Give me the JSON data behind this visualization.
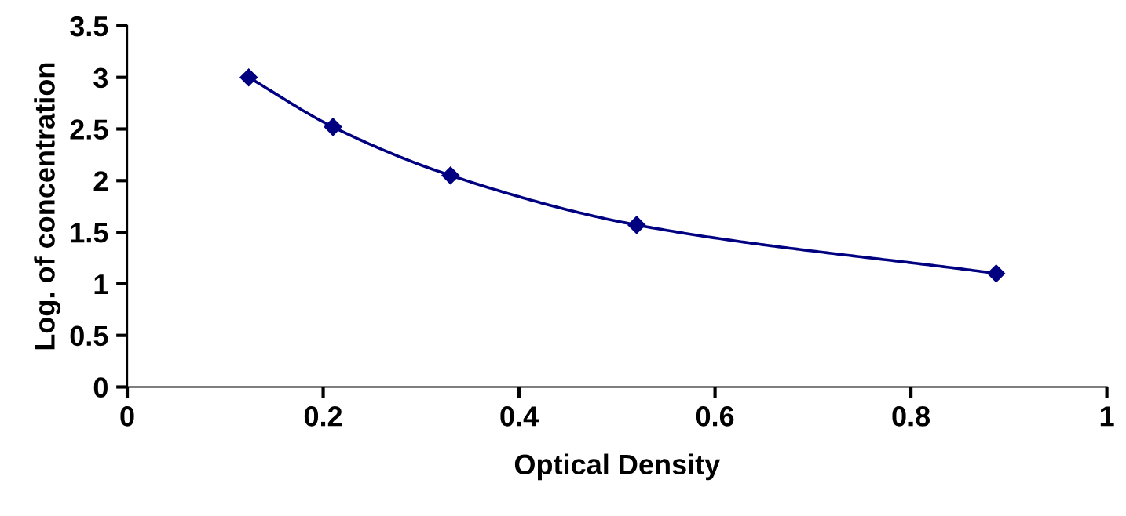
{
  "chart_data": {
    "type": "line",
    "xlabel": "Optical Density",
    "ylabel": "Log. of concentration",
    "x": [
      0.124,
      0.21,
      0.33,
      0.52,
      0.887
    ],
    "series": [
      {
        "color": "#000080",
        "values": [
          3.0,
          2.52,
          2.05,
          1.57,
          1.1
        ]
      }
    ],
    "xlim": [
      0,
      1
    ],
    "xticks": [
      0,
      0.2,
      0.4,
      0.6,
      0.8,
      1
    ],
    "ylim": [
      0,
      3.5
    ],
    "yticks": [
      0,
      0.5,
      1,
      1.5,
      2,
      2.5,
      3,
      3.5
    ],
    "grid": false,
    "legend": false,
    "marker": "diamond",
    "line_style": "solid"
  }
}
